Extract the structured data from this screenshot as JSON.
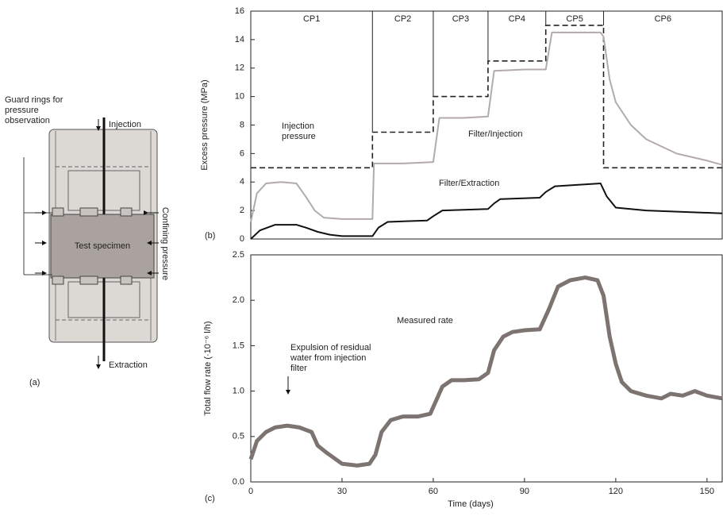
{
  "diagram": {
    "label": "(a)",
    "guard_rings": "Guard rings for pressure observation",
    "injection": "Injection",
    "extraction": "Extraction",
    "confining": "Confining pressure",
    "specimen": "Test specimen"
  },
  "chart_data": [
    {
      "type": "line",
      "panel_label": "(b)",
      "y_label": "Excess pressure (MPa)",
      "xlim": [
        0,
        155
      ],
      "ylim": [
        0,
        16
      ],
      "yticks": [
        0,
        2,
        4,
        6,
        8,
        10,
        12,
        14,
        16
      ],
      "phases": [
        {
          "label": "CP1",
          "start": 0,
          "end": 40
        },
        {
          "label": "CP2",
          "start": 40,
          "end": 60
        },
        {
          "label": "CP3",
          "start": 60,
          "end": 78
        },
        {
          "label": "CP4",
          "start": 78,
          "end": 97
        },
        {
          "label": "CP5",
          "start": 97,
          "end": 116
        },
        {
          "label": "CP6",
          "start": 116,
          "end": 155
        }
      ],
      "series": [
        {
          "name": "Injection pressure",
          "color": "#222222",
          "dash": true,
          "x": [
            0,
            40,
            40,
            60,
            60,
            78,
            78,
            97,
            97,
            116,
            116,
            155
          ],
          "values": [
            5,
            5,
            7.5,
            7.5,
            10,
            10,
            12.5,
            12.5,
            15,
            15,
            5,
            5
          ]
        },
        {
          "name": "Filter/Injection",
          "color": "#b3abab",
          "dash": false,
          "x": [
            0,
            2,
            5,
            10,
            15,
            18,
            21,
            24,
            30,
            40,
            40.5,
            50,
            60,
            62,
            70,
            78,
            80,
            90,
            97,
            99,
            105,
            115,
            116,
            118,
            120,
            125,
            130,
            140,
            150,
            155
          ],
          "values": [
            1.2,
            3.2,
            3.9,
            4.0,
            3.9,
            3.0,
            2.0,
            1.5,
            1.4,
            1.4,
            5.3,
            5.3,
            5.4,
            8.5,
            8.5,
            8.6,
            11.8,
            11.9,
            11.9,
            14.5,
            14.5,
            14.5,
            14.2,
            11.2,
            9.6,
            8.0,
            7.0,
            6.0,
            5.5,
            5.2
          ]
        },
        {
          "name": "Filter/Extraction",
          "color": "#111111",
          "dash": false,
          "x": [
            0,
            3,
            8,
            15,
            18,
            22,
            26,
            30,
            40,
            42,
            45,
            58,
            60,
            63,
            78,
            80,
            82,
            95,
            97,
            100,
            115,
            117,
            120,
            130,
            155
          ],
          "values": [
            0,
            0.6,
            1.0,
            1.0,
            0.8,
            0.5,
            0.3,
            0.2,
            0.2,
            0.8,
            1.2,
            1.3,
            1.6,
            2.0,
            2.1,
            2.5,
            2.8,
            2.9,
            3.3,
            3.7,
            3.9,
            3.0,
            2.2,
            2.0,
            1.8
          ]
        }
      ]
    },
    {
      "type": "line",
      "panel_label": "(c)",
      "x_label": "Time (days)",
      "y_label": "Total flow rate (·10⁻⁶ l/h)",
      "xlim": [
        0,
        155
      ],
      "ylim": [
        0,
        2.5
      ],
      "xticks": [
        0,
        30,
        60,
        90,
        120,
        150
      ],
      "yticks": [
        {
          "value": 0,
          "label": "0.0"
        },
        0.5,
        {
          "value": 1,
          "label": "1.0"
        },
        1.5,
        {
          "value": 2,
          "label": "2.0"
        },
        2.5
      ],
      "annotation": "Expulsion of residual water from injection filter",
      "series": [
        {
          "name": "Measured rate",
          "color": "#7d7472",
          "dash": false,
          "x": [
            0,
            2,
            5,
            8,
            12,
            16,
            20,
            22,
            25,
            30,
            35,
            39,
            41,
            43,
            46,
            50,
            55,
            59,
            61,
            63,
            66,
            70,
            75,
            78,
            80,
            83,
            86,
            90,
            95,
            98,
            101,
            105,
            110,
            114,
            116,
            118,
            120,
            122,
            125,
            130,
            135,
            138,
            142,
            146,
            150,
            155
          ],
          "values": [
            0.25,
            0.45,
            0.55,
            0.6,
            0.62,
            0.6,
            0.55,
            0.4,
            0.32,
            0.2,
            0.18,
            0.2,
            0.3,
            0.55,
            0.68,
            0.72,
            0.72,
            0.75,
            0.9,
            1.05,
            1.12,
            1.12,
            1.13,
            1.2,
            1.45,
            1.6,
            1.65,
            1.67,
            1.68,
            1.9,
            2.15,
            2.22,
            2.25,
            2.22,
            2.05,
            1.6,
            1.3,
            1.1,
            1.0,
            0.95,
            0.92,
            0.97,
            0.95,
            1.0,
            0.95,
            0.92
          ]
        }
      ]
    }
  ]
}
